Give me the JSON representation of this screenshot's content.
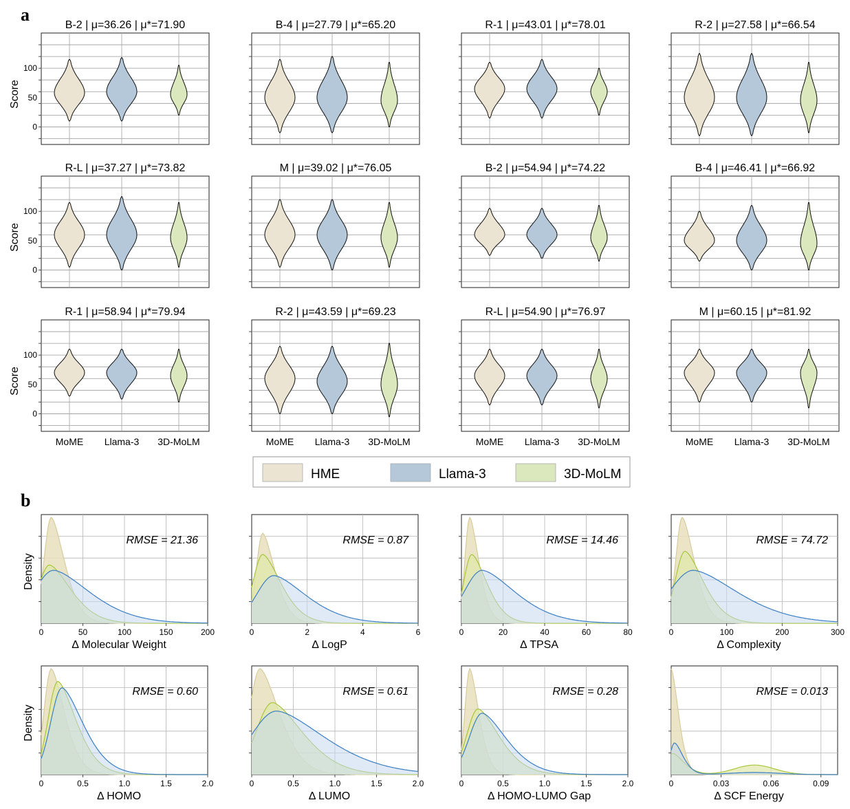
{
  "panel_labels": {
    "a": "a",
    "b": "b"
  },
  "colors": {
    "HME": "#ece4d2",
    "Llama-3": "#b4c8da",
    "3D-MoLM": "#dbe7bc",
    "kde_hme": "#e8dfbd",
    "kde_llama_line": "#3b7fc4",
    "kde_llama_fill": "#c4d8ee",
    "kde_molm_line": "#a8c63c",
    "kde_molm_fill": "#dfe8a8",
    "kde_overlap": "#a8bf92"
  },
  "legend": {
    "items": [
      "HME",
      "Llama-3",
      "3D-MoLM"
    ]
  },
  "chart_data": [
    {
      "type": "violin",
      "title": "B-2 | μ=36.26 |  μ*=71.90",
      "ylabel": "Score",
      "yticks": [
        0,
        50,
        100
      ],
      "ylim": [
        -30,
        160
      ],
      "categories": [
        "MoME",
        "Llama-3",
        "3D-MoLM"
      ],
      "series": [
        {
          "name": "MoME",
          "median": 60,
          "min": 10,
          "max": 115,
          "peak": 58
        },
        {
          "name": "Llama-3",
          "median": 60,
          "min": 10,
          "max": 118,
          "peak": 60
        },
        {
          "name": "3D-MoLM",
          "median": 55,
          "min": 20,
          "max": 105,
          "peak": 55
        }
      ]
    },
    {
      "type": "violin",
      "title": "B-4 | μ=27.79 | μ*=65.20",
      "yticks": [
        0,
        50,
        100
      ],
      "ylim": [
        -30,
        160
      ],
      "categories": [
        "MoME",
        "Llama-3",
        "3D-MoLM"
      ],
      "series": [
        {
          "name": "MoME",
          "median": 50,
          "min": -10,
          "max": 115,
          "peak": 50
        },
        {
          "name": "Llama-3",
          "median": 50,
          "min": -10,
          "max": 120,
          "peak": 50
        },
        {
          "name": "3D-MoLM",
          "median": 45,
          "min": 0,
          "max": 110,
          "peak": 45
        }
      ]
    },
    {
      "type": "violin",
      "title": "R-1 | μ=43.01 | μ*=78.01",
      "yticks": [
        0,
        50,
        100
      ],
      "ylim": [
        -30,
        160
      ],
      "categories": [
        "MoME",
        "Llama-3",
        "3D-MoLM"
      ],
      "series": [
        {
          "name": "MoME",
          "median": 65,
          "min": 15,
          "max": 110,
          "peak": 65
        },
        {
          "name": "Llama-3",
          "median": 65,
          "min": 15,
          "max": 115,
          "peak": 65
        },
        {
          "name": "3D-MoLM",
          "median": 60,
          "min": 20,
          "max": 100,
          "peak": 60
        }
      ]
    },
    {
      "type": "violin",
      "title": "R-2 | μ=27.58 | μ*=66.54",
      "yticks": [
        0,
        50,
        100
      ],
      "ylim": [
        -30,
        160
      ],
      "categories": [
        "MoME",
        "Llama-3",
        "3D-MoLM"
      ],
      "series": [
        {
          "name": "MoME",
          "median": 50,
          "min": -15,
          "max": 125,
          "peak": 50
        },
        {
          "name": "Llama-3",
          "median": 50,
          "min": -15,
          "max": 125,
          "peak": 50
        },
        {
          "name": "3D-MoLM",
          "median": 45,
          "min": -10,
          "max": 110,
          "peak": 45
        }
      ]
    },
    {
      "type": "violin",
      "title": "R-L | μ=37.27 | μ*=73.82",
      "ylabel": "Score",
      "yticks": [
        0,
        50,
        100
      ],
      "ylim": [
        -30,
        160
      ],
      "categories": [
        "MoME",
        "Llama-3",
        "3D-MoLM"
      ],
      "series": [
        {
          "name": "MoME",
          "median": 60,
          "min": 5,
          "max": 115,
          "peak": 60
        },
        {
          "name": "Llama-3",
          "median": 60,
          "min": 0,
          "max": 125,
          "peak": 60
        },
        {
          "name": "3D-MoLM",
          "median": 55,
          "min": 5,
          "max": 115,
          "peak": 55
        }
      ]
    },
    {
      "type": "violin",
      "title": "M | μ=39.02 | μ*=76.05",
      "yticks": [
        0,
        50,
        100
      ],
      "ylim": [
        -30,
        160
      ],
      "categories": [
        "MoME",
        "Llama-3",
        "3D-MoLM"
      ],
      "series": [
        {
          "name": "MoME",
          "median": 60,
          "min": 5,
          "max": 120,
          "peak": 60
        },
        {
          "name": "Llama-3",
          "median": 60,
          "min": 0,
          "max": 120,
          "peak": 60
        },
        {
          "name": "3D-MoLM",
          "median": 55,
          "min": 5,
          "max": 115,
          "peak": 55
        }
      ]
    },
    {
      "type": "violin",
      "title": "B-2 | μ=54.94 | μ*=74.22",
      "yticks": [
        0,
        50,
        100
      ],
      "ylim": [
        -30,
        160
      ],
      "categories": [
        "MoME",
        "Llama-3",
        "3D-MoLM"
      ],
      "series": [
        {
          "name": "MoME",
          "median": 60,
          "min": 25,
          "max": 105,
          "peak": 60
        },
        {
          "name": "Llama-3",
          "median": 60,
          "min": 20,
          "max": 105,
          "peak": 60
        },
        {
          "name": "3D-MoLM",
          "median": 55,
          "min": 15,
          "max": 110,
          "peak": 55
        }
      ]
    },
    {
      "type": "violin",
      "title": "B-4 | μ=46.41 | μ*=66.92",
      "yticks": [
        0,
        50,
        100
      ],
      "ylim": [
        -30,
        160
      ],
      "categories": [
        "MoME",
        "Llama-3",
        "3D-MoLM"
      ],
      "series": [
        {
          "name": "MoME",
          "median": 50,
          "min": 15,
          "max": 100,
          "peak": 50
        },
        {
          "name": "Llama-3",
          "median": 50,
          "min": 0,
          "max": 110,
          "peak": 50
        },
        {
          "name": "3D-MoLM",
          "median": 45,
          "min": 0,
          "max": 115,
          "peak": 45
        }
      ]
    },
    {
      "type": "violin",
      "title": "R-1 | μ=58.94 | μ*=79.94",
      "ylabel": "Score",
      "yticks": [
        0,
        50,
        100
      ],
      "ylim": [
        -30,
        160
      ],
      "categories": [
        "MoME",
        "Llama-3",
        "3D-MoLM"
      ],
      "series": [
        {
          "name": "MoME",
          "median": 70,
          "min": 30,
          "max": 110,
          "peak": 70
        },
        {
          "name": "Llama-3",
          "median": 70,
          "min": 25,
          "max": 110,
          "peak": 70
        },
        {
          "name": "3D-MoLM",
          "median": 65,
          "min": 20,
          "max": 110,
          "peak": 65
        }
      ]
    },
    {
      "type": "violin",
      "title": "R-2 | μ=43.59 | μ*=69.23",
      "yticks": [
        0,
        50,
        100
      ],
      "ylim": [
        -30,
        160
      ],
      "categories": [
        "MoME",
        "Llama-3",
        "3D-MoLM"
      ],
      "series": [
        {
          "name": "MoME",
          "median": 60,
          "min": 0,
          "max": 115,
          "peak": 60
        },
        {
          "name": "Llama-3",
          "median": 55,
          "min": 0,
          "max": 115,
          "peak": 55
        },
        {
          "name": "3D-MoLM",
          "median": 50,
          "min": -5,
          "max": 120,
          "peak": 50
        }
      ]
    },
    {
      "type": "violin",
      "title": "R-L | μ=54.90 | μ*=76.97",
      "yticks": [
        0,
        50,
        100
      ],
      "ylim": [
        -30,
        160
      ],
      "categories": [
        "MoME",
        "Llama-3",
        "3D-MoLM"
      ],
      "series": [
        {
          "name": "MoME",
          "median": 65,
          "min": 15,
          "max": 110,
          "peak": 65
        },
        {
          "name": "Llama-3",
          "median": 65,
          "min": 15,
          "max": 110,
          "peak": 65
        },
        {
          "name": "3D-MoLM",
          "median": 60,
          "min": 10,
          "max": 110,
          "peak": 60
        }
      ]
    },
    {
      "type": "violin",
      "title": "M | μ=60.15 | μ*=81.92",
      "yticks": [
        0,
        50,
        100
      ],
      "ylim": [
        -30,
        160
      ],
      "categories": [
        "MoME",
        "Llama-3",
        "3D-MoLM"
      ],
      "series": [
        {
          "name": "MoME",
          "median": 70,
          "min": 20,
          "max": 110,
          "peak": 70
        },
        {
          "name": "Llama-3",
          "median": 70,
          "min": 20,
          "max": 110,
          "peak": 70
        },
        {
          "name": "3D-MoLM",
          "median": 70,
          "min": 10,
          "max": 110,
          "peak": 70
        }
      ]
    },
    {
      "type": "area",
      "xlabel": "Δ Molecular Weight",
      "ylabel": "Density",
      "annotation": "RMSE = 21.36",
      "xlim": [
        0,
        200
      ],
      "xticks": [
        0,
        50,
        100,
        150,
        200
      ],
      "xtick_labels": [
        "0",
        "50",
        "100",
        "150",
        "200"
      ],
      "series": [
        {
          "name": "HME",
          "mode": 12,
          "scale": 22,
          "height": 1.0
        },
        {
          "name": "3D-MoLM",
          "mode": 10,
          "scale": 35,
          "height": 0.55
        },
        {
          "name": "Llama-3",
          "mode": 15,
          "scale": 60,
          "height": 0.5
        }
      ]
    },
    {
      "type": "area",
      "xlabel": "Δ LogP",
      "annotation": "RMSE = 0.87",
      "xlim": [
        0,
        6
      ],
      "xticks": [
        0,
        2,
        4,
        6
      ],
      "xtick_labels": [
        "0",
        "2",
        "4",
        "6"
      ],
      "series": [
        {
          "name": "HME",
          "mode": 0.4,
          "scale": 0.6,
          "height": 0.85
        },
        {
          "name": "3D-MoLM",
          "mode": 0.4,
          "scale": 0.9,
          "height": 0.65
        },
        {
          "name": "Llama-3",
          "mode": 0.8,
          "scale": 1.6,
          "height": 0.45
        }
      ]
    },
    {
      "type": "area",
      "xlabel": "Δ TPSA",
      "annotation": "RMSE = 14.46",
      "xlim": [
        0,
        80
      ],
      "xticks": [
        0,
        20,
        40,
        60,
        80
      ],
      "xtick_labels": [
        "0",
        "20",
        "40",
        "60",
        "80"
      ],
      "series": [
        {
          "name": "HME",
          "mode": 4,
          "scale": 6,
          "height": 1.0
        },
        {
          "name": "3D-MoLM",
          "mode": 5,
          "scale": 10,
          "height": 0.65
        },
        {
          "name": "Llama-3",
          "mode": 10,
          "scale": 22,
          "height": 0.5
        }
      ]
    },
    {
      "type": "area",
      "xlabel": "Δ Complexity",
      "annotation": "RMSE = 74.72",
      "xlim": [
        0,
        300
      ],
      "xticks": [
        0,
        100,
        200,
        300
      ],
      "xtick_labels": [
        "0",
        "100",
        "200",
        "300"
      ],
      "series": [
        {
          "name": "HME",
          "mode": 20,
          "scale": 30,
          "height": 1.0
        },
        {
          "name": "3D-MoLM",
          "mode": 25,
          "scale": 45,
          "height": 0.68
        },
        {
          "name": "Llama-3",
          "mode": 40,
          "scale": 110,
          "height": 0.5
        }
      ]
    },
    {
      "type": "area",
      "xlabel": "Δ HOMO",
      "ylabel": "Density",
      "annotation": "RMSE = 0.60",
      "xlim": [
        0,
        2.0
      ],
      "xticks": [
        0,
        0.5,
        1.0,
        1.5,
        2.0
      ],
      "xtick_labels": [
        "0",
        "0.5",
        "1.0",
        "1.5",
        "2.0"
      ],
      "series": [
        {
          "name": "HME",
          "mode": 0.12,
          "scale": 0.22,
          "height": 1.0
        },
        {
          "name": "3D-MoLM",
          "mode": 0.2,
          "scale": 0.3,
          "height": 0.88
        },
        {
          "name": "Llama-3",
          "mode": 0.25,
          "scale": 0.35,
          "height": 0.82
        }
      ]
    },
    {
      "type": "area",
      "xlabel": "Δ LUMO",
      "annotation": "RMSE = 0.61",
      "xlim": [
        0,
        2.0
      ],
      "xticks": [
        0,
        0.5,
        1.0,
        1.5,
        2.0
      ],
      "xtick_labels": [
        "0",
        "0.5",
        "1.0",
        "1.5",
        "2.0"
      ],
      "series": [
        {
          "name": "HME",
          "mode": 0.1,
          "scale": 0.32,
          "height": 1.0
        },
        {
          "name": "3D-MoLM",
          "mode": 0.25,
          "scale": 0.5,
          "height": 0.68
        },
        {
          "name": "Llama-3",
          "mode": 0.3,
          "scale": 0.8,
          "height": 0.6
        }
      ]
    },
    {
      "type": "area",
      "xlabel": "Δ HOMO-LUMO Gap",
      "annotation": "RMSE = 0.28",
      "xlim": [
        0,
        2.0
      ],
      "xticks": [
        0,
        0.5,
        1.0,
        1.5,
        2.0
      ],
      "xtick_labels": [
        "0",
        "0.5",
        "1.0",
        "1.5",
        "2.0"
      ],
      "series": [
        {
          "name": "HME",
          "mode": 0.1,
          "scale": 0.15,
          "height": 1.0
        },
        {
          "name": "3D-MoLM",
          "mode": 0.2,
          "scale": 0.35,
          "height": 0.62
        },
        {
          "name": "Llama-3",
          "mode": 0.25,
          "scale": 0.4,
          "height": 0.58
        }
      ]
    },
    {
      "type": "area",
      "xlabel": "Δ SCF Energy",
      "annotation": "RMSE = 0.013",
      "xlim": [
        0,
        0.1
      ],
      "xticks": [
        0,
        0.03,
        0.06,
        0.09
      ],
      "xtick_labels": [
        "0",
        "0.03",
        "0.06",
        "0.09"
      ],
      "series": [
        {
          "name": "HME",
          "mode": 0.0,
          "scale": 0.006,
          "height": 1.0
        },
        {
          "name": "3D-MoLM",
          "mode": 0.001,
          "scale": 0.009,
          "height": 0.2,
          "bump": {
            "center": 0.05,
            "width": 0.012,
            "height": 0.09
          }
        },
        {
          "name": "Llama-3",
          "mode": 0.002,
          "scale": 0.007,
          "height": 0.3,
          "bump": {
            "center": 0.05,
            "width": 0.015,
            "height": 0.02
          }
        }
      ]
    }
  ]
}
